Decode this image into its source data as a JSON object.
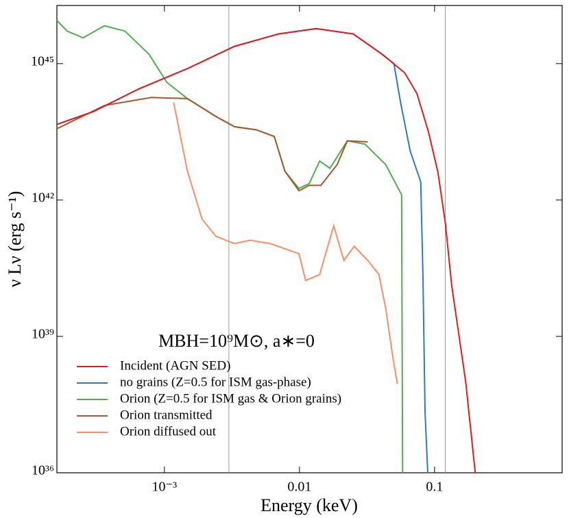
{
  "chart_data": {
    "type": "line",
    "xlabel": "Energy (keV)",
    "ylabel": "ν Lν (erg s⁻¹)",
    "annotation": "MBH=10⁹M⊙, a∗=0",
    "xscale": "log",
    "yscale": "log",
    "xlim": [
      0.00016,
      0.88
    ],
    "ylim": [
      1e+36,
      1.9e+46
    ],
    "xticks": [
      {
        "value": 0.001,
        "label": "10⁻³"
      },
      0.01,
      0.1
    ],
    "yticks": [
      {
        "value": 1e+36,
        "label": "10³⁶"
      },
      {
        "value": 1e+39,
        "label": "10³⁹"
      },
      {
        "value": 1e+42,
        "label": "10⁴²"
      },
      {
        "value": 1e+45,
        "label": "10⁴⁵"
      }
    ],
    "vlines": [
      0.003,
      0.12
    ],
    "legend": "lower left",
    "series": [
      {
        "name": "no grains (Z=0.5 for ISM gas-phase)",
        "color": "#2b7bba",
        "x": [
          0.00016,
          0.0003,
          0.00065,
          0.0015,
          0.0033,
          0.007,
          0.0133,
          0.025,
          0.041,
          0.05,
          0.056,
          0.066,
          0.079,
          0.082,
          0.085,
          0.089
        ],
        "values": [
          4.6e+43,
          8.9e+43,
          2.8e+44,
          7.9e+44,
          2.4e+45,
          4.5e+45,
          5.9e+45,
          4.5e+45,
          1.6e+45,
          1e+45,
          1.4e+44,
          1.2e+43,
          2.5e+42,
          2.3e+40,
          2.2e+37,
          1e+36
        ]
      },
      {
        "name": "Orion (Z=0.5 for ISM gas & Orion grains)",
        "color": "#4daf4a",
        "x": [
          0.00016,
          0.00019,
          0.00025,
          0.00036,
          0.00051,
          0.00077,
          0.00104,
          0.00148,
          0.0024,
          0.0033,
          0.0048,
          0.0065,
          0.0078,
          0.0099,
          0.0118,
          0.0141,
          0.0168,
          0.0226,
          0.0305,
          0.0435,
          0.057,
          0.058
        ],
        "values": [
          8.9e+45,
          5.2e+45,
          3.7e+45,
          6.8e+45,
          5.2e+45,
          1.6e+45,
          3.9e+44,
          1.7e+44,
          6.9e+43,
          4.1e+43,
          3.5e+43,
          2.5e+43,
          4.3e+42,
          1.8e+42,
          2.3e+42,
          7.2e+42,
          5e+42,
          2e+43,
          1.7e+43,
          6e+42,
          1.3e+42,
          1e+36
        ]
      },
      {
        "name": "Orion transmitted",
        "color": "#a5562a",
        "x": [
          0.00016,
          0.00036,
          0.0008,
          0.00148,
          0.0024,
          0.0033,
          0.0048,
          0.0065,
          0.0078,
          0.0099,
          0.0118,
          0.0144,
          0.019,
          0.0226,
          0.032
        ],
        "values": [
          3.7e+43,
          1.2e+44,
          1.8e+44,
          1.7e+44,
          6.9e+43,
          4.1e+43,
          3.5e+43,
          2.5e+43,
          4.3e+42,
          1.6e+42,
          2.1e+42,
          2.1e+42,
          6e+42,
          2e+43,
          1.9e+43
        ]
      },
      {
        "name": "Orion diffused out",
        "color": "#fc8d62",
        "x": [
          0.00117,
          0.00148,
          0.0019,
          0.0024,
          0.0033,
          0.0043,
          0.0061,
          0.0099,
          0.0111,
          0.0141,
          0.0179,
          0.0213,
          0.0254,
          0.032,
          0.0387,
          0.0435,
          0.049,
          0.053
        ],
        "values": [
          1.4e+44,
          4.3e+42,
          3.8e+41,
          1.6e+41,
          1.1e+41,
          1.3e+41,
          1.1e+41,
          6.6e+40,
          1.7e+40,
          2.3e+40,
          2.7e+41,
          4.7e+40,
          9.6e+40,
          4.7e+40,
          2.3e+40,
          4.1e+39,
          3.6e+38,
          9e+37
        ]
      },
      {
        "name": "Incident (AGN SED)",
        "color": "#e31a1c",
        "x": [
          0.00016,
          0.0003,
          0.00065,
          0.0015,
          0.0033,
          0.007,
          0.0133,
          0.025,
          0.041,
          0.06,
          0.074,
          0.09,
          0.106,
          0.12,
          0.134,
          0.17,
          0.2
        ],
        "values": [
          4.6e+43,
          8.9e+43,
          2.8e+44,
          7.9e+44,
          2.4e+45,
          4.5e+45,
          5.9e+45,
          4.5e+45,
          1.6e+45,
          6.3e+44,
          2.2e+44,
          3.2e+43,
          4e+42,
          3.2e+41,
          1.3e+40,
          1e+38,
          1e+36
        ]
      }
    ]
  }
}
